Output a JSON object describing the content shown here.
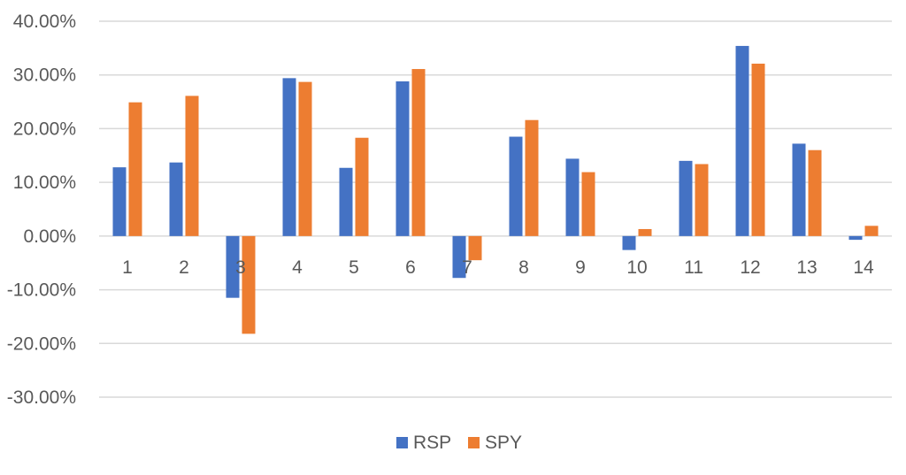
{
  "chart_data": {
    "type": "bar",
    "categories": [
      "1",
      "2",
      "3",
      "4",
      "5",
      "6",
      "7",
      "8",
      "9",
      "10",
      "11",
      "12",
      "13",
      "14"
    ],
    "series": [
      {
        "name": "RSP",
        "color": "#4472C4",
        "values": [
          0.128,
          0.137,
          -0.115,
          0.294,
          0.127,
          0.288,
          -0.078,
          0.185,
          0.144,
          -0.026,
          0.14,
          0.354,
          0.172,
          -0.007
        ]
      },
      {
        "name": "SPY",
        "color": "#ED7D31",
        "values": [
          0.249,
          0.261,
          -0.182,
          0.287,
          0.183,
          0.311,
          -0.045,
          0.216,
          0.119,
          0.013,
          0.134,
          0.321,
          0.16,
          0.019
        ]
      }
    ],
    "yticks": [
      "40.00%",
      "30.00%",
      "20.00%",
      "10.00%",
      "0.00%",
      "-10.00%",
      "-20.00%",
      "-30.00%"
    ],
    "ylim": [
      -0.3,
      0.4
    ],
    "grid": true,
    "legend_position": "bottom",
    "title": "",
    "xlabel": "",
    "ylabel": ""
  }
}
